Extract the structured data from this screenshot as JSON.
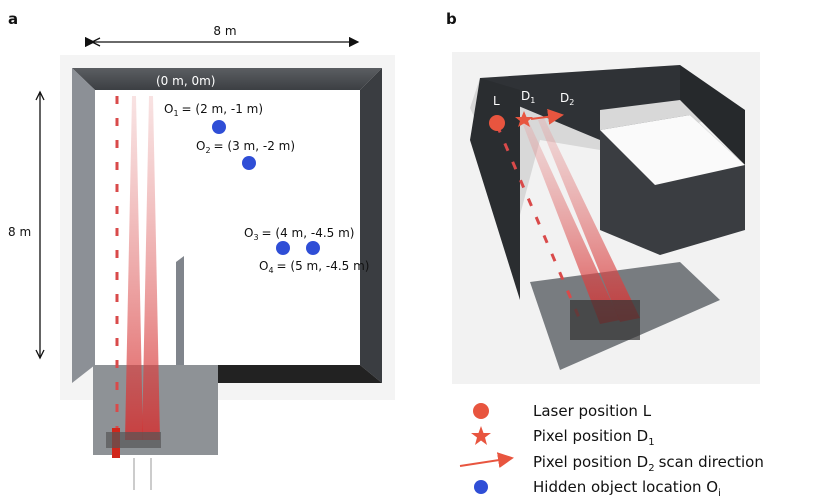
{
  "panel_a": {
    "label": "a",
    "width_label": "8 m",
    "height_label": "8 m",
    "origin_label": "(0 m, 0m)",
    "objects": [
      {
        "name": "O",
        "sub": "1",
        "coords": "= (2 m, -1 m)"
      },
      {
        "name": "O",
        "sub": "2",
        "coords": "= (3 m, -2 m)"
      },
      {
        "name": "O",
        "sub": "3",
        "coords": "= (4 m, -4.5 m)"
      },
      {
        "name": "O",
        "sub": "4",
        "coords": "= (5 m, -4.5 m)"
      }
    ]
  },
  "panel_b": {
    "label": "b",
    "points": [
      {
        "name": "L"
      },
      {
        "name": "D",
        "sub": "1"
      },
      {
        "name": "D",
        "sub": "2"
      }
    ]
  },
  "legend": [
    {
      "text": "Laser position L"
    },
    {
      "text": "Pixel position D",
      "sub": "1"
    },
    {
      "text": "Pixel position D",
      "sub": "2",
      "suffix": "scan direction"
    },
    {
      "text": "Hidden object location O",
      "sub": "i"
    }
  ]
}
